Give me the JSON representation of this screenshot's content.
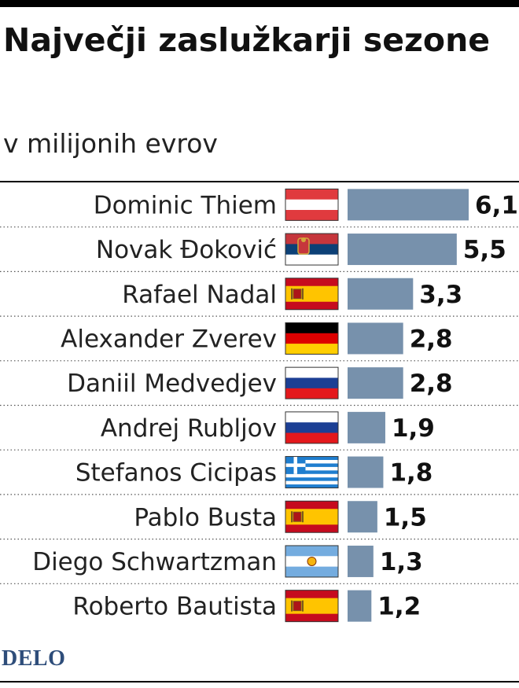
{
  "header": {
    "title": "Največji zaslužkarji sezone",
    "subtitle": "v milijonih evrov"
  },
  "brand": {
    "logo_text": "DELO"
  },
  "colors": {
    "bar": "#7791ac",
    "rule": "#000000"
  },
  "chart_data": {
    "type": "bar",
    "orientation": "horizontal",
    "title": "Največji zaslužkarji sezone",
    "subtitle": "v milijonih evrov",
    "categories": [
      "Dominic Thiem",
      "Novak Đoković",
      "Rafael Nadal",
      "Alexander Zverev",
      "Daniil Medvedjev",
      "Andrej Rubljov",
      "Stefanos Cicipas",
      "Pablo Busta",
      "Diego Schwartzman",
      "Roberto Bautista"
    ],
    "values": [
      6.1,
      5.5,
      3.3,
      2.8,
      2.8,
      1.9,
      1.8,
      1.5,
      1.3,
      1.2
    ],
    "value_labels": [
      "6,1",
      "5,5",
      "3,3",
      "2,8",
      "2,8",
      "1,9",
      "1,8",
      "1,5",
      "1,3",
      "1,2"
    ],
    "flags": [
      "austria-flag",
      "serbia-flag",
      "spain-flag",
      "germany-flag",
      "russia-flag",
      "russia-flag",
      "greece-flag",
      "spain-flag",
      "argentina-flag",
      "spain-flag"
    ],
    "xlim": [
      0,
      6.1
    ],
    "grid": false,
    "legend": "none"
  }
}
